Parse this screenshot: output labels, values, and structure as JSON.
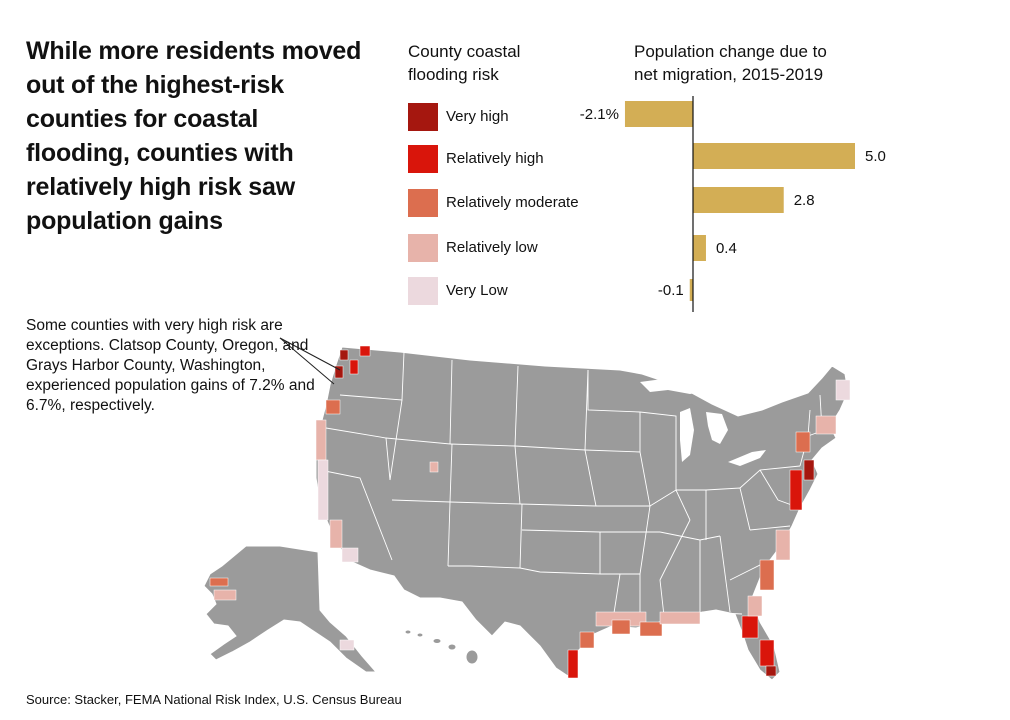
{
  "headline": "While more residents moved out of the highest-risk counties for coastal flooding, counties with relatively high risk saw population gains",
  "legend": {
    "title": "County coastal\nflooding risk",
    "items": [
      {
        "label": "Very high",
        "color": "#a5170f"
      },
      {
        "label": "Relatively high",
        "color": "#d9150b"
      },
      {
        "label": "Relatively moderate",
        "color": "#dc6e4f"
      },
      {
        "label": "Relatively low",
        "color": "#e7b3aa"
      },
      {
        "label": "Very Low",
        "color": "#ecd9de"
      }
    ]
  },
  "chart_data": {
    "type": "bar",
    "orientation": "horizontal",
    "title": "Population change due to\nnet migration, 2015-2019",
    "categories": [
      "Very high",
      "Relatively high",
      "Relatively moderate",
      "Relatively low",
      "Very Low"
    ],
    "values": [
      -2.1,
      5.0,
      2.8,
      0.4,
      -0.1
    ],
    "value_labels": [
      "-2.1%",
      "5.0",
      "2.8",
      "0.4",
      "-0.1"
    ],
    "bar_color": "#d3ae55",
    "xlim": [
      -2.1,
      5.0
    ]
  },
  "annotation": "Some counties with very high risk are exceptions. Clatsop County, Oregon, and Grays Harbor County, Washington, experienced population gains of 7.2% and 6.7%, respectively.",
  "source": "Source: Stacker, FEMA National Risk Index, U.S. Census Bureau",
  "map": {
    "land_color": "#9b9b9b",
    "border_color": "#ffffff"
  }
}
